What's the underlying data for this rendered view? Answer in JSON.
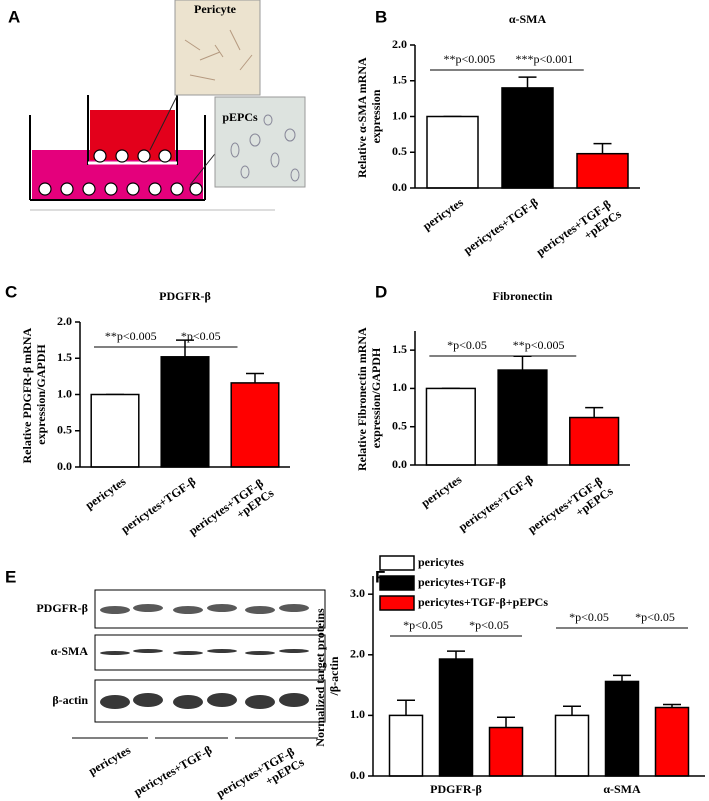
{
  "panel_labels": [
    "A",
    "B",
    "C",
    "D",
    "E",
    "F"
  ],
  "panel_a": {
    "labels": [
      "Pericyte",
      "pEPCs"
    ]
  },
  "panel_e": {
    "rows": [
      "PDGFR-β",
      "α-SMA",
      "β-actin"
    ],
    "groups": [
      "pericytes",
      "pericytes+TGF-β",
      "pericytes+TGF-β +pEPCs"
    ]
  },
  "chart_data": [
    {
      "type": "bar",
      "title": "α-SMA",
      "ylabel": "Relative α-SMA mRNA expression",
      "categories": [
        "pericytes",
        "pericytes+TGF-β",
        "pericytes+TGF-β +pEPCs"
      ],
      "values": [
        1.0,
        1.4,
        0.48
      ],
      "errors": [
        0,
        0.15,
        0.14
      ],
      "colors": [
        "#ffffff",
        "#000000",
        "#ff0000"
      ],
      "ylim": [
        0,
        2.0
      ],
      "yticks": [
        {
          "value": 0,
          "label": "0.0"
        },
        {
          "value": 0.5,
          "label": "0.5"
        },
        {
          "value": 1,
          "label": "1.0"
        },
        {
          "value": 1.5,
          "label": "1.5"
        },
        {
          "value": 2,
          "label": "2.0"
        }
      ],
      "annotations": [
        "**p<0.005",
        "***p<0.001"
      ]
    },
    {
      "type": "bar",
      "title": "PDGFR-β",
      "ylabel": "Relative PDGFR-β mRNA expression/GAPDH",
      "categories": [
        "pericytes",
        "pericytes+TGF-β",
        "pericytes+TGF-β +pEPCs"
      ],
      "values": [
        1.0,
        1.52,
        1.16
      ],
      "errors": [
        0,
        0.23,
        0.13
      ],
      "colors": [
        "#ffffff",
        "#000000",
        "#ff0000"
      ],
      "ylim": [
        0,
        2.0
      ],
      "yticks": [
        {
          "value": 0,
          "label": "0.0"
        },
        {
          "value": 0.5,
          "label": "0.5"
        },
        {
          "value": 1,
          "label": "1.0"
        },
        {
          "value": 1.5,
          "label": "1.5"
        },
        {
          "value": 2,
          "label": "2.0"
        }
      ],
      "annotations": [
        "**p<0.005",
        "*p<0.05"
      ]
    },
    {
      "type": "bar",
      "title": "Fibronectin",
      "ylabel": "Relative Fibronectin mRNA expression/GAPDH",
      "categories": [
        "pericytes",
        "pericytes+TGF-β",
        "pericytes+TGF-β +pEPCs"
      ],
      "values": [
        1.0,
        1.24,
        0.62
      ],
      "errors": [
        0,
        0.18,
        0.13
      ],
      "colors": [
        "#ffffff",
        "#000000",
        "#ff0000"
      ],
      "ylim": [
        0,
        1.75
      ],
      "yticks": [
        {
          "value": 0,
          "label": "0.0"
        },
        {
          "value": 0.5,
          "label": "0.5"
        },
        {
          "value": 1,
          "label": "1.0"
        },
        {
          "value": 1.5,
          "label": "1.5"
        }
      ],
      "annotations": [
        "*p<0.05",
        "**p<0.005"
      ]
    },
    {
      "type": "grouped_bar",
      "ylabel": "Normalized target proteins /β-actin",
      "categories": [
        "PDGFR-β",
        "α-SMA"
      ],
      "series": [
        {
          "name": "pericytes",
          "color": "#ffffff",
          "values": [
            1.0,
            1.0
          ],
          "errors": [
            0.25,
            0.15
          ]
        },
        {
          "name": "pericytes+TGF-β",
          "color": "#000000",
          "values": [
            1.93,
            1.56
          ],
          "errors": [
            0.13,
            0.1
          ]
        },
        {
          "name": "pericytes+TGF-β+pEPCs",
          "color": "#ff0000",
          "values": [
            0.8,
            1.13
          ],
          "errors": [
            0.17,
            0.05
          ]
        }
      ],
      "ylim": [
        0,
        3.3
      ],
      "yticks": [
        {
          "value": 0,
          "label": "0.0"
        },
        {
          "value": 1,
          "label": "1.0"
        },
        {
          "value": 2,
          "label": "2.0"
        },
        {
          "value": 3,
          "label": "3.0"
        }
      ],
      "annotations": [
        [
          "*p<0.05",
          "*p<0.05"
        ],
        [
          "*p<0.05",
          "*p<0.05"
        ]
      ]
    }
  ]
}
